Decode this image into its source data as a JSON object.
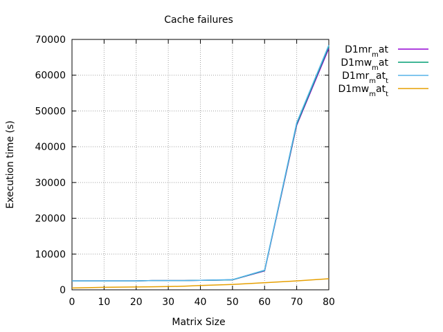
{
  "chart_data": {
    "type": "line",
    "title": "Cache failures",
    "xlabel": "Matrix Size",
    "ylabel": "Execution time (s)",
    "xlim": [
      0,
      80
    ],
    "ylim": [
      0,
      70000
    ],
    "xticks": [
      0,
      10,
      20,
      30,
      40,
      50,
      60,
      70,
      80
    ],
    "yticks": [
      0,
      10000,
      20000,
      30000,
      40000,
      50000,
      60000,
      70000
    ],
    "grid": true,
    "legend_position": "right",
    "x": [
      0,
      5,
      10,
      15,
      20,
      25,
      30,
      35,
      40,
      45,
      50,
      60,
      70,
      80
    ],
    "series": [
      {
        "name": "D1mr_mat",
        "legend_parts": [
          {
            "t": "D1mr",
            "sub": false
          },
          {
            "t": "m",
            "sub": true
          },
          {
            "t": "at",
            "sub": false
          }
        ],
        "color": "#9400d3",
        "values": [
          2500,
          2500,
          2500,
          2500,
          2500,
          2600,
          2600,
          2600,
          2650,
          2700,
          2800,
          5300,
          46000,
          67500
        ]
      },
      {
        "name": "D1mw_mat",
        "legend_parts": [
          {
            "t": "D1mw",
            "sub": false
          },
          {
            "t": "m",
            "sub": true
          },
          {
            "t": "at",
            "sub": false
          }
        ],
        "color": "#009e73",
        "values": [
          2500,
          2500,
          2500,
          2500,
          2500,
          2600,
          2600,
          2600,
          2650,
          2700,
          2800,
          5400,
          46300,
          68000
        ]
      },
      {
        "name": "D1mr_mat_t",
        "legend_parts": [
          {
            "t": "D1mr",
            "sub": false
          },
          {
            "t": "m",
            "sub": true
          },
          {
            "t": "at",
            "sub": false
          },
          {
            "t": "t",
            "sub": true
          }
        ],
        "color": "#56b4e9",
        "values": [
          2500,
          2500,
          2500,
          2500,
          2500,
          2600,
          2600,
          2600,
          2650,
          2750,
          2850,
          5500,
          46700,
          68400
        ]
      },
      {
        "name": "D1mw_mat_t",
        "legend_parts": [
          {
            "t": "D1mw",
            "sub": false
          },
          {
            "t": "m",
            "sub": true
          },
          {
            "t": "at",
            "sub": false
          },
          {
            "t": "t",
            "sub": true
          }
        ],
        "color": "#e69f00",
        "values": [
          500,
          600,
          700,
          750,
          800,
          850,
          900,
          1000,
          1200,
          1350,
          1500,
          2000,
          2500,
          3100
        ]
      }
    ]
  }
}
